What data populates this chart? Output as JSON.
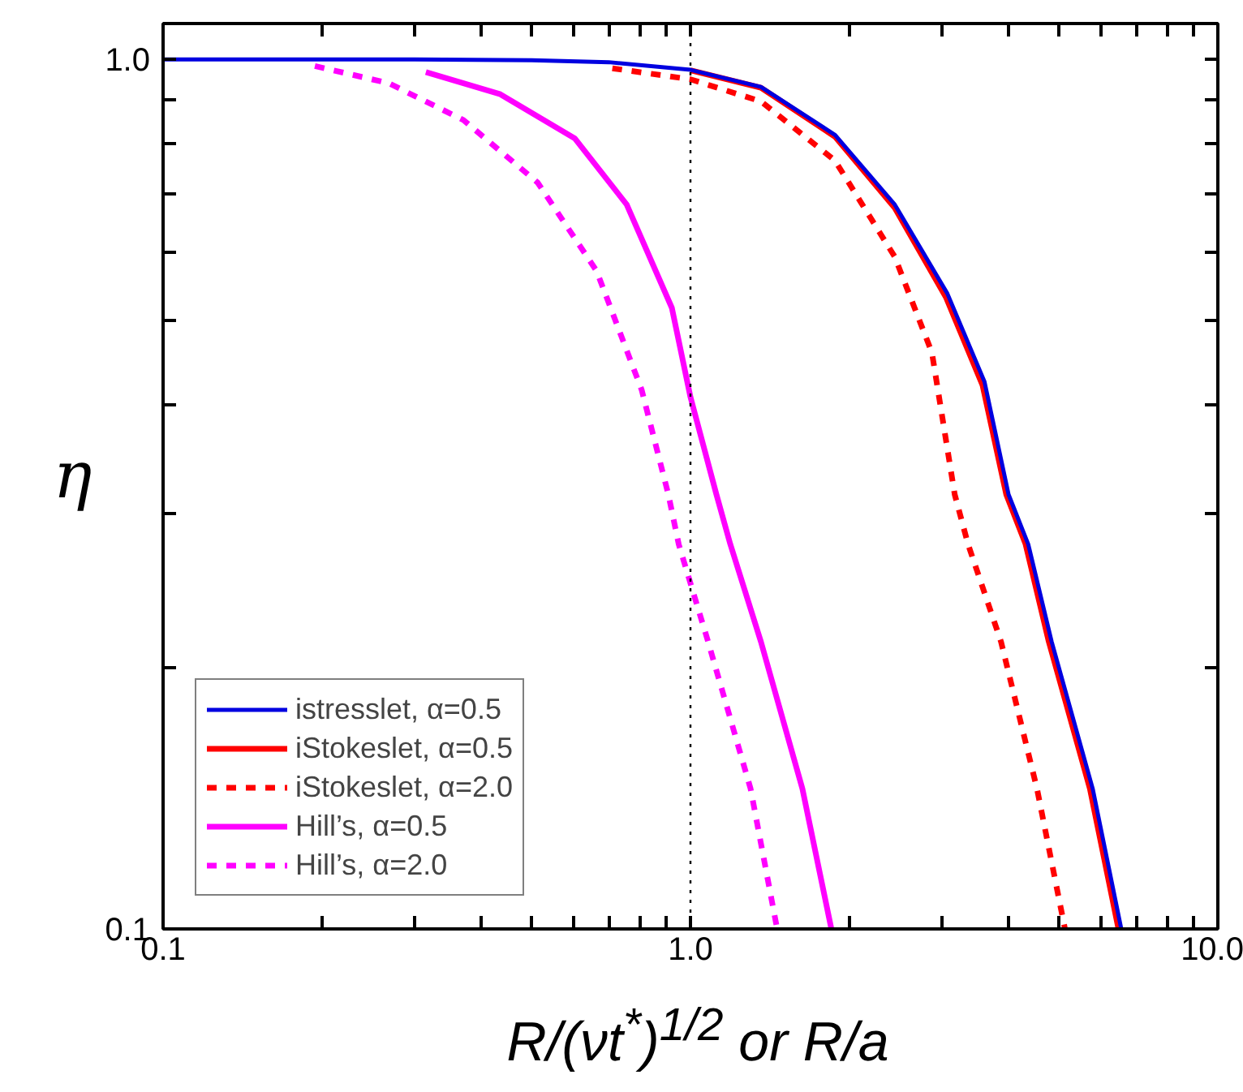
{
  "chart_data": {
    "type": "line",
    "xlabel": "R/(νt$^{*}$)$^{1/2}$ or R/a",
    "ylabel": "η",
    "log": "xy",
    "grid": false,
    "legend": "bottom left",
    "marker": "none",
    "xlim": [
      0.1,
      10
    ],
    "ylim": [
      0.1,
      1.1
    ],
    "xticks": [
      {
        "value": 0.1,
        "label": "0.1"
      },
      {
        "value": 0.2,
        "label": null
      },
      {
        "value": 0.3,
        "label": null
      },
      {
        "value": 0.4,
        "label": null
      },
      {
        "value": 0.5,
        "label": null
      },
      {
        "value": 0.6,
        "label": null
      },
      {
        "value": 0.7,
        "label": null
      },
      {
        "value": 0.8,
        "label": null
      },
      {
        "value": 0.9,
        "label": null
      },
      {
        "value": 1,
        "label": "1.0"
      },
      {
        "value": 2,
        "label": null
      },
      {
        "value": 3,
        "label": null
      },
      {
        "value": 4,
        "label": null
      },
      {
        "value": 5,
        "label": null
      },
      {
        "value": 6,
        "label": null
      },
      {
        "value": 7,
        "label": null
      },
      {
        "value": 8,
        "label": null
      },
      {
        "value": 9,
        "label": null
      },
      {
        "value": 10,
        "label": "10.0"
      }
    ],
    "yticks": [
      {
        "value": 0.1,
        "label": "0.1"
      },
      {
        "value": 0.2,
        "label": null
      },
      {
        "value": 0.3,
        "label": null
      },
      {
        "value": 0.4,
        "label": null
      },
      {
        "value": 0.5,
        "label": null
      },
      {
        "value": 0.6,
        "label": null
      },
      {
        "value": 0.7,
        "label": null
      },
      {
        "value": 0.8,
        "label": null
      },
      {
        "value": 0.9,
        "label": null
      },
      {
        "value": 1,
        "label": "1.0"
      }
    ],
    "ref_lines": [
      {
        "axis": "x",
        "value": 1,
        "color": "#000000",
        "line_style": "dotted"
      }
    ],
    "series": [
      {
        "name": "istresslet, α=0.5",
        "color": "#0000e0",
        "line_style": "solid",
        "x": [
          0.1,
          0.3,
          0.5,
          0.7,
          1.0,
          1.36,
          1.88,
          2.44,
          3.07,
          3.61,
          4.01,
          4.37,
          4.84,
          5.79,
          6.56
        ],
        "values": [
          1.0,
          1.0,
          0.998,
          0.993,
          0.973,
          0.93,
          0.819,
          0.681,
          0.538,
          0.426,
          0.316,
          0.277,
          0.214,
          0.145,
          0.1
        ]
      },
      {
        "name": "iStokeslet, α=0.5",
        "color": "#ff0000",
        "line_style": "solid",
        "x": [
          1.0,
          1.36,
          1.88,
          2.44,
          3.05,
          3.58,
          3.97,
          4.32,
          4.78,
          5.72,
          6.48
        ],
        "values": [
          0.972,
          0.928,
          0.815,
          0.675,
          0.533,
          0.422,
          0.316,
          0.277,
          0.214,
          0.145,
          0.1
        ]
      },
      {
        "name": "iStokeslet, α=2.0",
        "color": "#ff0000",
        "line_style": "dashed",
        "x": [
          0.711,
          1.0,
          1.36,
          1.88,
          2.44,
          2.87,
          3.17,
          3.36,
          3.88,
          4.54,
          5.13
        ],
        "values": [
          0.977,
          0.949,
          0.895,
          0.765,
          0.593,
          0.46,
          0.316,
          0.277,
          0.214,
          0.145,
          0.1
        ]
      },
      {
        "name": "Hill’s, α=0.5",
        "color": "#ff00ff",
        "line_style": "solid",
        "x": [
          0.315,
          0.436,
          0.604,
          0.757,
          0.922,
          1.0,
          1.12,
          1.19,
          1.36,
          1.63,
          1.85
        ],
        "values": [
          0.967,
          0.912,
          0.811,
          0.681,
          0.518,
          0.409,
          0.316,
          0.277,
          0.214,
          0.145,
          0.1
        ]
      },
      {
        "name": "Hill’s, α=2.0",
        "color": "#ff00ff",
        "line_style": "dashed",
        "x": [
          0.194,
          0.268,
          0.371,
          0.513,
          0.664,
          0.808,
          0.908,
          0.95,
          1.08,
          1.3,
          1.46
        ],
        "values": [
          0.983,
          0.939,
          0.852,
          0.722,
          0.571,
          0.417,
          0.316,
          0.277,
          0.214,
          0.145,
          0.1
        ]
      }
    ]
  }
}
